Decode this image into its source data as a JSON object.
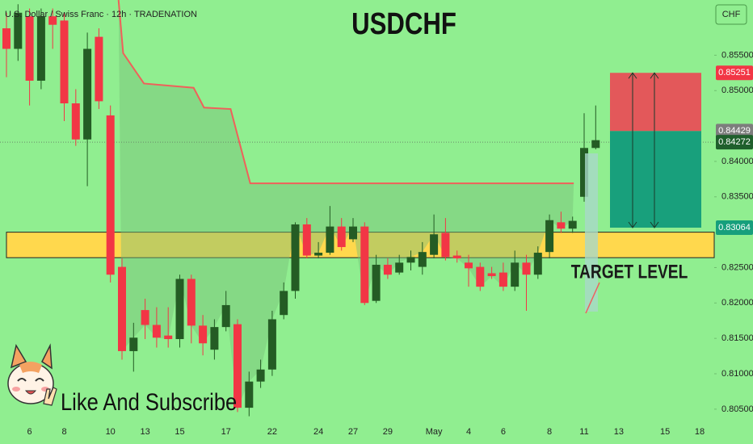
{
  "chart_data": {
    "type": "candlestick",
    "title": "USDCHF",
    "subtitle": "U.S. Dollar / Swiss Franc · 12h · TRADENATION",
    "currency": "CHF",
    "caption": "Like And Subscribe",
    "up_color": "#245c24",
    "down_color": "#f23645",
    "ylim": [
      0.8035,
      0.8628
    ],
    "yticks": [
      {
        "value": 0.855,
        "label": "0.85500"
      },
      {
        "value": 0.85,
        "label": "0.85000"
      },
      {
        "value": 0.84,
        "label": "0.84000"
      },
      {
        "value": 0.835,
        "label": "0.83500"
      },
      {
        "value": 0.825,
        "label": "0.82500"
      },
      {
        "value": 0.82,
        "label": "0.82000"
      },
      {
        "value": 0.815,
        "label": "0.81500"
      },
      {
        "value": 0.81,
        "label": "0.81000"
      },
      {
        "value": 0.805,
        "label": "0.80500"
      }
    ],
    "categories": [
      null,
      null,
      "6",
      null,
      null,
      "8",
      null,
      null,
      null,
      "10",
      null,
      null,
      "13",
      null,
      null,
      "15",
      null,
      null,
      null,
      "17",
      null,
      null,
      null,
      "22",
      null,
      null,
      null,
      "24",
      null,
      null,
      "27",
      null,
      null,
      "29",
      null,
      null,
      null,
      "May",
      null,
      null,
      "4",
      null,
      null,
      "6",
      null,
      null,
      null,
      "8",
      null,
      null,
      "11",
      null,
      null,
      "13",
      null,
      null,
      null,
      "15",
      null,
      null,
      "18"
    ],
    "ohlc": [
      [
        0.8588,
        0.861,
        0.8519,
        0.8559
      ],
      [
        0.8559,
        0.8622,
        0.8542,
        0.861
      ],
      [
        0.8605,
        0.8616,
        0.8479,
        0.8514
      ],
      [
        0.8514,
        0.8616,
        0.8502,
        0.8605
      ],
      [
        0.8605,
        0.8616,
        0.8559,
        0.8593
      ],
      [
        0.8599,
        0.861,
        0.8457,
        0.8482
      ],
      [
        0.8482,
        0.8502,
        0.8422,
        0.8431
      ],
      [
        0.8431,
        0.8582,
        0.8365,
        0.8559
      ],
      [
        0.8576,
        0.8588,
        0.8474,
        0.8485
      ],
      [
        0.8465,
        0.8479,
        0.8229,
        0.824
      ],
      [
        0.8251,
        0.8263,
        0.812,
        0.8132
      ],
      [
        0.8132,
        0.8172,
        0.8103,
        0.8151
      ],
      [
        0.819,
        0.8206,
        0.8149,
        0.8169
      ],
      [
        0.8169,
        0.8194,
        0.8137,
        0.8151
      ],
      [
        0.8154,
        0.8194,
        0.8137,
        0.8149
      ],
      [
        0.8149,
        0.824,
        0.8137,
        0.8234
      ],
      [
        0.8234,
        0.824,
        0.8143,
        0.8168
      ],
      [
        0.8168,
        0.8183,
        0.8126,
        0.8143
      ],
      [
        0.8134,
        0.8177,
        0.812,
        0.8166
      ],
      [
        0.8166,
        0.8217,
        0.816,
        0.8197
      ],
      [
        0.817,
        0.8177,
        0.8046,
        0.8052
      ],
      [
        0.8052,
        0.8103,
        0.804,
        0.8089
      ],
      [
        0.8089,
        0.812,
        0.808,
        0.8106
      ],
      [
        0.8106,
        0.8189,
        0.8097,
        0.8177
      ],
      [
        0.8183,
        0.8229,
        0.8177,
        0.8217
      ],
      [
        0.8217,
        0.8314,
        0.8206,
        0.8311
      ],
      [
        0.8311,
        0.832,
        0.8263,
        0.8267
      ],
      [
        0.8267,
        0.8286,
        0.8263,
        0.8271
      ],
      [
        0.8271,
        0.8337,
        0.8268,
        0.8308
      ],
      [
        0.8308,
        0.832,
        0.8274,
        0.8279
      ],
      [
        0.829,
        0.832,
        0.8286,
        0.8308
      ],
      [
        0.8308,
        0.8314,
        0.8197,
        0.82
      ],
      [
        0.8203,
        0.8268,
        0.82,
        0.8254
      ],
      [
        0.8254,
        0.8263,
        0.8234,
        0.824
      ],
      [
        0.8243,
        0.8268,
        0.824,
        0.8257
      ],
      [
        0.8257,
        0.8274,
        0.8246,
        0.8265
      ],
      [
        0.8251,
        0.8286,
        0.824,
        0.8272
      ],
      [
        0.8268,
        0.8325,
        0.8263,
        0.8297
      ],
      [
        0.8299,
        0.832,
        0.826,
        0.8265
      ],
      [
        0.8267,
        0.8274,
        0.8257,
        0.8263
      ],
      [
        0.8257,
        0.8268,
        0.8223,
        0.8249
      ],
      [
        0.8251,
        0.8257,
        0.8217,
        0.8223
      ],
      [
        0.8242,
        0.8251,
        0.8234,
        0.8238
      ],
      [
        0.8243,
        0.8257,
        0.8217,
        0.8223
      ],
      [
        0.8223,
        0.8274,
        0.8217,
        0.8257
      ],
      [
        0.8257,
        0.8268,
        0.8189,
        0.824
      ],
      [
        0.824,
        0.828,
        0.8234,
        0.8271
      ],
      [
        0.8272,
        0.8325,
        0.8263,
        0.8317
      ],
      [
        0.8314,
        0.8329,
        0.8299,
        0.8305
      ],
      [
        0.8305,
        0.8322,
        0.8299,
        0.8316
      ],
      [
        0.835,
        0.8468,
        0.8343,
        0.8419
      ],
      [
        0.8419,
        0.8479,
        0.8417,
        0.843
      ],
      null,
      null,
      null,
      null,
      null,
      null,
      null,
      null,
      null
    ],
    "indicator": {
      "color": "#f0605a",
      "x": [
        9.7,
        10.1,
        11.9,
        16.2,
        17.1,
        19.4,
        21.1,
        49.1
      ],
      "values": [
        0.8628,
        0.8553,
        0.851,
        0.8504,
        0.8476,
        0.8474,
        0.8369,
        0.8369
      ]
    },
    "zone": {
      "top": 0.83,
      "bottom": 0.8264,
      "color": "#ffd84d",
      "label": "TARGET LEVEL"
    },
    "position": {
      "stop": 0.85251,
      "entry": 0.84429,
      "target": 0.83064
    },
    "last_price": 0.84272
  }
}
